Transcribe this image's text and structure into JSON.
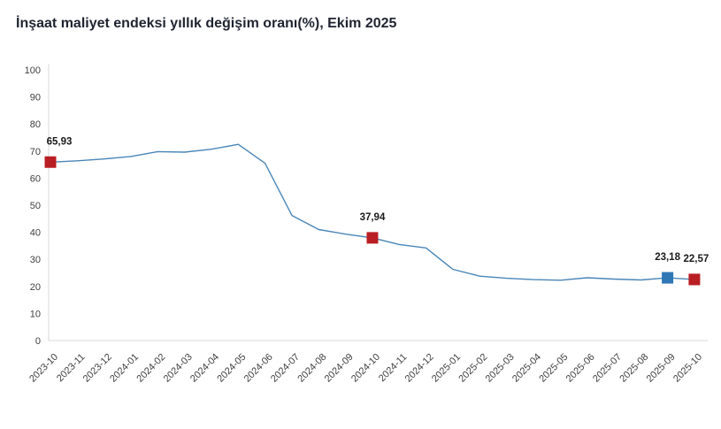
{
  "header": {
    "title": "İnşaat maliyet endeksi yıllık değişim oranı(%), Ekim 2025"
  },
  "chart_data": {
    "type": "line",
    "title": "İnşaat maliyet endeksi yıllık değişim oranı(%), Ekim 2025",
    "categories": [
      "2023-10",
      "2023-11",
      "2023-12",
      "2024-01",
      "2024-02",
      "2024-03",
      "2024-04",
      "2024-05",
      "2024-06",
      "2024-07",
      "2024-08",
      "2024-09",
      "2024-10",
      "2024-11",
      "2024-12",
      "2025-01",
      "2025-02",
      "2025-03",
      "2025-04",
      "2025-05",
      "2025-06",
      "2025-07",
      "2025-08",
      "2025-09",
      "2025-10"
    ],
    "values": [
      65.93,
      66.4,
      67.1,
      68.0,
      69.8,
      69.6,
      70.7,
      72.5,
      65.5,
      46.2,
      41.0,
      39.3,
      37.94,
      35.5,
      34.2,
      26.3,
      23.8,
      23.0,
      22.5,
      22.3,
      23.2,
      22.7,
      22.4,
      23.18,
      22.57
    ],
    "ylim": [
      0,
      100
    ],
    "ytick_step": 10,
    "grid": false,
    "legend": "none",
    "xlabel": "",
    "ylabel": "",
    "line_color": "#4a86b8",
    "axis_color": "#d9d9d9",
    "tick_label_color": "#404040",
    "data_label_color": "#1a1a1a",
    "annotations": [
      {
        "category": "2023-10",
        "index": 0,
        "label": "65,93",
        "marker_color": "#b81e23",
        "label_dx": 10
      },
      {
        "category": "2024-10",
        "index": 12,
        "label": "37,94",
        "marker_color": "#b81e23",
        "label_dx": 0
      },
      {
        "category": "2025-09",
        "index": 23,
        "label": "23,18",
        "marker_color": "#2f76b5",
        "label_dx": 0
      },
      {
        "category": "2025-10",
        "index": 24,
        "label": "22,57",
        "marker_color": "#b81e23",
        "label_dx": 2
      }
    ]
  }
}
